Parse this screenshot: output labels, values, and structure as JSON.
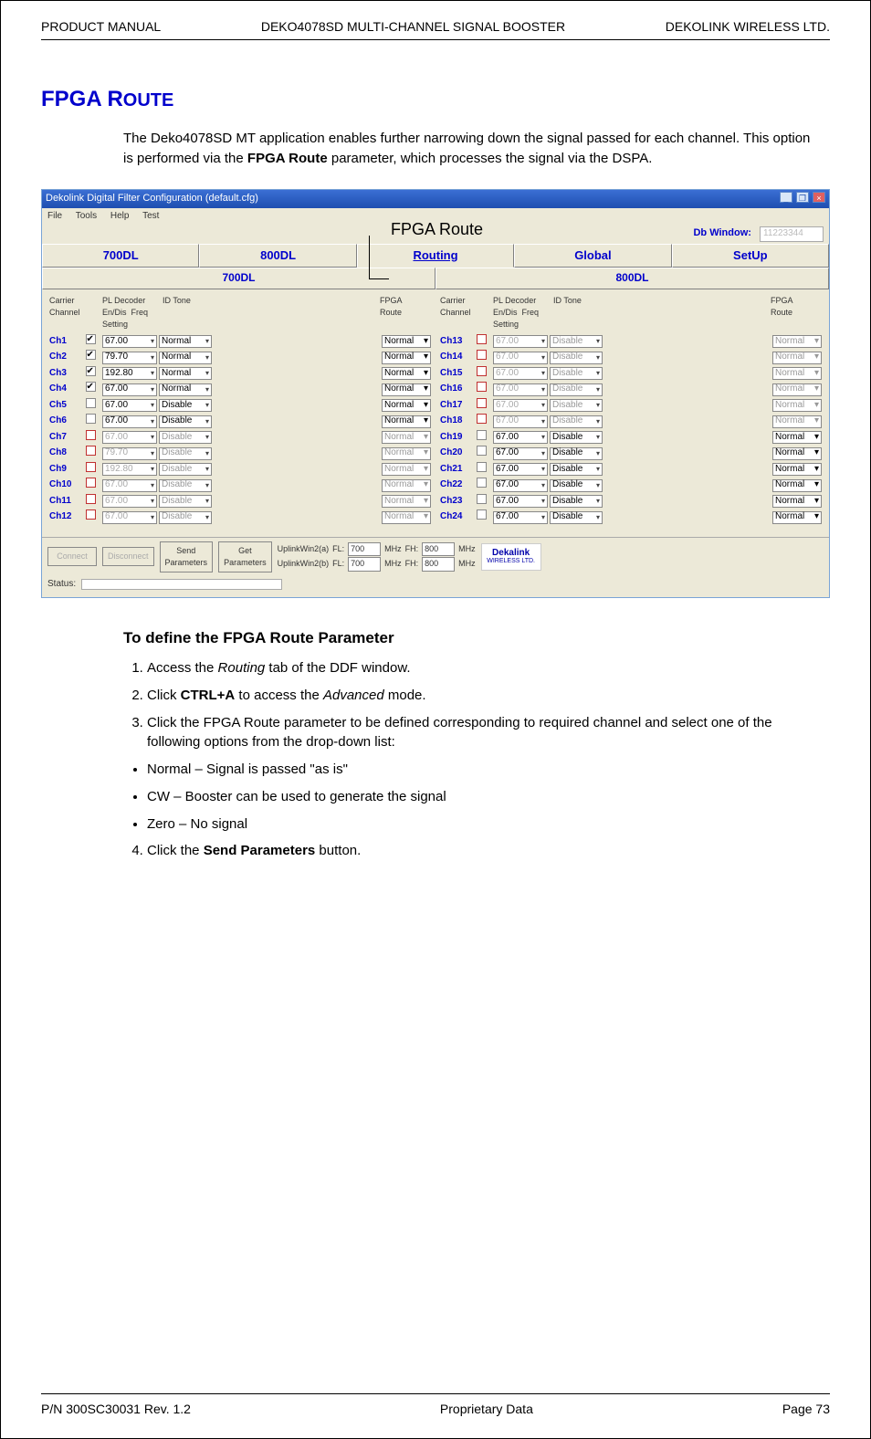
{
  "header": {
    "left": "PRODUCT MANUAL",
    "center": "DEKO4078SD MULTI-CHANNEL SIGNAL BOOSTER",
    "right": "DEKOLINK WIRELESS LTD."
  },
  "section": {
    "title_main": "FPGA R",
    "title_small": "OUTE",
    "para": "The Deko4078SD MT application enables further narrowing down the signal passed for each channel. This option is performed via the ",
    "para_bold": "FPGA Route",
    "para_after": " parameter, which processes the signal via the DSPA."
  },
  "callout": "FPGA Route",
  "app": {
    "title": "Dekolink Digital Filter Configuration (default.cfg)",
    "menus": [
      "File",
      "Tools",
      "Help",
      "Test"
    ],
    "dbwindow_label": "Db Window:",
    "dbwindow_value": "11223344",
    "tabs": [
      "700DL",
      "800DL",
      "Routing",
      "Global",
      "SetUp"
    ],
    "subtabs": [
      "700DL",
      "800DL"
    ],
    "cols": {
      "carrier": "Carrier\nChannel",
      "pl": "PL Decoder",
      "en": "En/Dis",
      "freq": "Freq Setting",
      "id": "ID Tone",
      "fpga": "FPGA\nRoute"
    },
    "left_rows": [
      {
        "ch": "Ch1",
        "en": true,
        "freq": "67.00",
        "set": "Normal",
        "fpga": "Normal",
        "active": true
      },
      {
        "ch": "Ch2",
        "en": true,
        "freq": "79.70",
        "set": "Normal",
        "fpga": "Normal",
        "active": true
      },
      {
        "ch": "Ch3",
        "en": true,
        "freq": "192.80",
        "set": "Normal",
        "fpga": "Normal",
        "active": true
      },
      {
        "ch": "Ch4",
        "en": true,
        "freq": "67.00",
        "set": "Normal",
        "fpga": "Normal",
        "active": true
      },
      {
        "ch": "Ch5",
        "en": false,
        "freq": "67.00",
        "set": "Disable",
        "fpga": "Normal",
        "active": true
      },
      {
        "ch": "Ch6",
        "en": false,
        "freq": "67.00",
        "set": "Disable",
        "fpga": "Normal",
        "active": true
      },
      {
        "ch": "Ch7",
        "en": false,
        "freq": "67.00",
        "set": "Disable",
        "fpga": "Normal",
        "active": false
      },
      {
        "ch": "Ch8",
        "en": false,
        "freq": "79.70",
        "set": "Disable",
        "fpga": "Normal",
        "active": false
      },
      {
        "ch": "Ch9",
        "en": false,
        "freq": "192.80",
        "set": "Disable",
        "fpga": "Normal",
        "active": false
      },
      {
        "ch": "Ch10",
        "en": false,
        "freq": "67.00",
        "set": "Disable",
        "fpga": "Normal",
        "active": false
      },
      {
        "ch": "Ch11",
        "en": false,
        "freq": "67.00",
        "set": "Disable",
        "fpga": "Normal",
        "active": false
      },
      {
        "ch": "Ch12",
        "en": false,
        "freq": "67.00",
        "set": "Disable",
        "fpga": "Normal",
        "active": false
      }
    ],
    "right_rows": [
      {
        "ch": "Ch13",
        "en": false,
        "freq": "67.00",
        "set": "Disable",
        "fpga": "Normal",
        "active": false
      },
      {
        "ch": "Ch14",
        "en": false,
        "freq": "67.00",
        "set": "Disable",
        "fpga": "Normal",
        "active": false
      },
      {
        "ch": "Ch15",
        "en": false,
        "freq": "67.00",
        "set": "Disable",
        "fpga": "Normal",
        "active": false
      },
      {
        "ch": "Ch16",
        "en": false,
        "freq": "67.00",
        "set": "Disable",
        "fpga": "Normal",
        "active": false
      },
      {
        "ch": "Ch17",
        "en": false,
        "freq": "67.00",
        "set": "Disable",
        "fpga": "Normal",
        "active": false
      },
      {
        "ch": "Ch18",
        "en": false,
        "freq": "67.00",
        "set": "Disable",
        "fpga": "Normal",
        "active": false
      },
      {
        "ch": "Ch19",
        "en": false,
        "freq": "67.00",
        "set": "Disable",
        "fpga": "Normal",
        "active": true
      },
      {
        "ch": "Ch20",
        "en": false,
        "freq": "67.00",
        "set": "Disable",
        "fpga": "Normal",
        "active": true
      },
      {
        "ch": "Ch21",
        "en": false,
        "freq": "67.00",
        "set": "Disable",
        "fpga": "Normal",
        "active": true
      },
      {
        "ch": "Ch22",
        "en": false,
        "freq": "67.00",
        "set": "Disable",
        "fpga": "Normal",
        "active": true
      },
      {
        "ch": "Ch23",
        "en": false,
        "freq": "67.00",
        "set": "Disable",
        "fpga": "Normal",
        "active": true
      },
      {
        "ch": "Ch24",
        "en": false,
        "freq": "67.00",
        "set": "Disable",
        "fpga": "Normal",
        "active": true
      }
    ],
    "buttons": {
      "connect": "Connect",
      "disconnect": "Disconnect",
      "send": "Send\nParameters",
      "get": "Get\nParameters"
    },
    "uplinks": [
      {
        "label": "UplinkWin2(a)",
        "fl": "700",
        "fh": "800"
      },
      {
        "label": "UplinkWin2(b)",
        "fl": "700",
        "fh": "800"
      }
    ],
    "mhz": "MHz",
    "fl": "FL:",
    "fh": "FH:",
    "logo_brand": "Dekalink",
    "logo_sub": "WIRELESS LTD.",
    "status_label": "Status:"
  },
  "sub": {
    "heading": "To define the FPGA Route Parameter",
    "s1a": "Access the ",
    "s1i": "Routing",
    "s1b": " tab of the DDF window.",
    "s2a": "Click ",
    "s2b": "CTRL+A",
    "s2c": " to access the ",
    "s2i": "Advanced",
    "s2d": " mode.",
    "s3": "Click the FPGA Route parameter to be defined corresponding to required channel and select one of the following options from the drop-down list:",
    "b1": "Normal – Signal is passed \"as is\"",
    "b2": "CW – Booster can be used to generate the signal",
    "b3": "Zero – No signal",
    "s4a": "Click the ",
    "s4b": "Send Parameters",
    "s4c": " button."
  },
  "footer": {
    "left": "P/N 300SC30031 Rev. 1.2",
    "center": "Proprietary Data",
    "right": "Page 73"
  }
}
